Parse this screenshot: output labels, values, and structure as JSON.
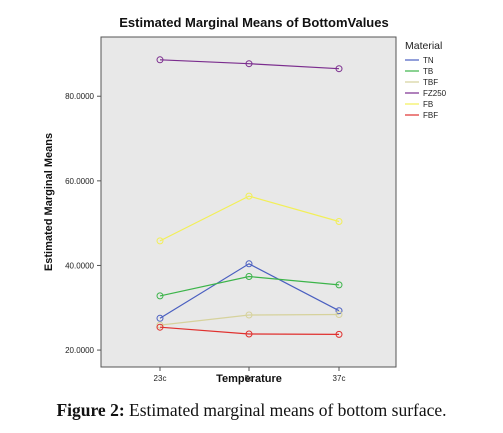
{
  "chart_data": {
    "type": "line",
    "title": "Estimated Marginal Means of BottomValues",
    "xlabel": "Temperature",
    "ylabel": "Estimated Marginal Means",
    "categories": [
      "23c",
      "5c",
      "37c"
    ],
    "ylim": [
      16,
      94
    ],
    "yticks": [
      "20.0000",
      "40.0000",
      "60.0000",
      "80.0000"
    ],
    "ytick_values": [
      20,
      40,
      60,
      80
    ],
    "grid": false,
    "legend_title": "Material",
    "legend_position": "right",
    "plot_background": "#e8e8e8",
    "series": [
      {
        "name": "TN",
        "color": "#4a5fc0",
        "values": [
          27.5,
          40.4,
          29.3
        ]
      },
      {
        "name": "TB",
        "color": "#3cb44a",
        "values": [
          32.8,
          37.4,
          35.4
        ]
      },
      {
        "name": "TBF",
        "color": "#d6d29c",
        "values": [
          25.9,
          28.3,
          28.4
        ]
      },
      {
        "name": "FZ250",
        "color": "#7b2d8e",
        "values": [
          88.6,
          87.7,
          86.5
        ]
      },
      {
        "name": "FB",
        "color": "#f2ef58",
        "values": [
          45.8,
          56.4,
          50.4
        ]
      },
      {
        "name": "FBF",
        "color": "#e0302e",
        "values": [
          25.4,
          23.8,
          23.7
        ]
      }
    ]
  },
  "caption": {
    "label": "Figure 2:",
    "text": " Estimated marginal means of bottom surface."
  }
}
